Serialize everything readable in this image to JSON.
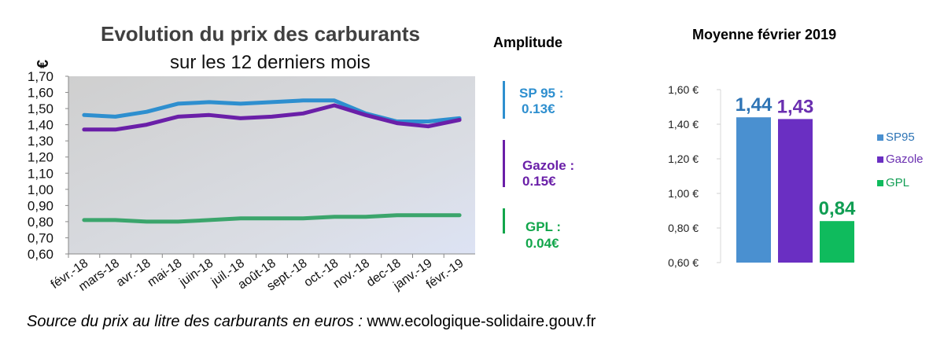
{
  "line_chart": {
    "title": "Evolution du prix des carburants",
    "subtitle": "sur les 12 derniers mois",
    "unit_symbol": "€"
  },
  "amplitude": {
    "title": "Amplitude",
    "items": [
      {
        "label": "SP 95 :",
        "value": "0.13€",
        "color": "#2e8fcf"
      },
      {
        "label": "Gazole :",
        "value": "0.15€",
        "color": "#6a1fa8"
      },
      {
        "label": "GPL :",
        "value": "0.04€",
        "color": "#12a64b"
      }
    ]
  },
  "bar_chart": {
    "title": "Moyenne février 2019"
  },
  "source": {
    "prefix": "Source du prix au litre des carburants en euros :",
    "url": "www.ecologique-solidaire.gouv.fr"
  },
  "chart_data": [
    {
      "type": "line",
      "title": "Evolution du prix des carburants",
      "subtitle": "sur les 12 derniers mois",
      "ylabel": "€",
      "ylim": [
        0.6,
        1.7
      ],
      "yticks": [
        "0,60",
        "0,70",
        "0,80",
        "0,90",
        "1,00",
        "1,10",
        "1,20",
        "1,30",
        "1,40",
        "1,50",
        "1,60",
        "1,70"
      ],
      "grid": false,
      "categories": [
        "févr.-18",
        "mars-18",
        "avr.-18",
        "mai-18",
        "juin-18",
        "juil.-18",
        "août-18",
        "sept.-18",
        "oct.-18",
        "nov.-18",
        "dec-18",
        "janv.-19",
        "févr.-19"
      ],
      "series": [
        {
          "color": "#2e8fcf",
          "values": [
            1.46,
            1.45,
            1.48,
            1.53,
            1.54,
            1.53,
            1.54,
            1.55,
            1.55,
            1.47,
            1.42,
            1.42,
            1.44
          ]
        },
        {
          "color": "#6a1fa8",
          "values": [
            1.37,
            1.37,
            1.4,
            1.45,
            1.46,
            1.44,
            1.45,
            1.47,
            1.52,
            1.46,
            1.41,
            1.39,
            1.43
          ]
        },
        {
          "color": "#3ba56c",
          "values": [
            0.81,
            0.81,
            0.8,
            0.8,
            0.81,
            0.82,
            0.82,
            0.82,
            0.83,
            0.83,
            0.84,
            0.84,
            0.84
          ]
        }
      ]
    },
    {
      "type": "bar",
      "title": "Moyenne février 2019",
      "ylim": [
        0.6,
        1.6
      ],
      "yticks": [
        "0,60 €",
        "0,80 €",
        "1,00 €",
        "1,20 €",
        "1,40 €",
        "1,60 €"
      ],
      "legend_position": "right",
      "categories": [
        "SP95",
        "Gazole",
        "GPL"
      ],
      "values": [
        1.44,
        1.43,
        0.84
      ],
      "data_labels": [
        "1,44",
        "1,43",
        "0,84"
      ],
      "colors": [
        "#4a90d0",
        "#6a2fc2",
        "#0fbb5d"
      ],
      "label_colors": [
        "#2e74b5",
        "#6a2fb0",
        "#109d53"
      ]
    }
  ]
}
